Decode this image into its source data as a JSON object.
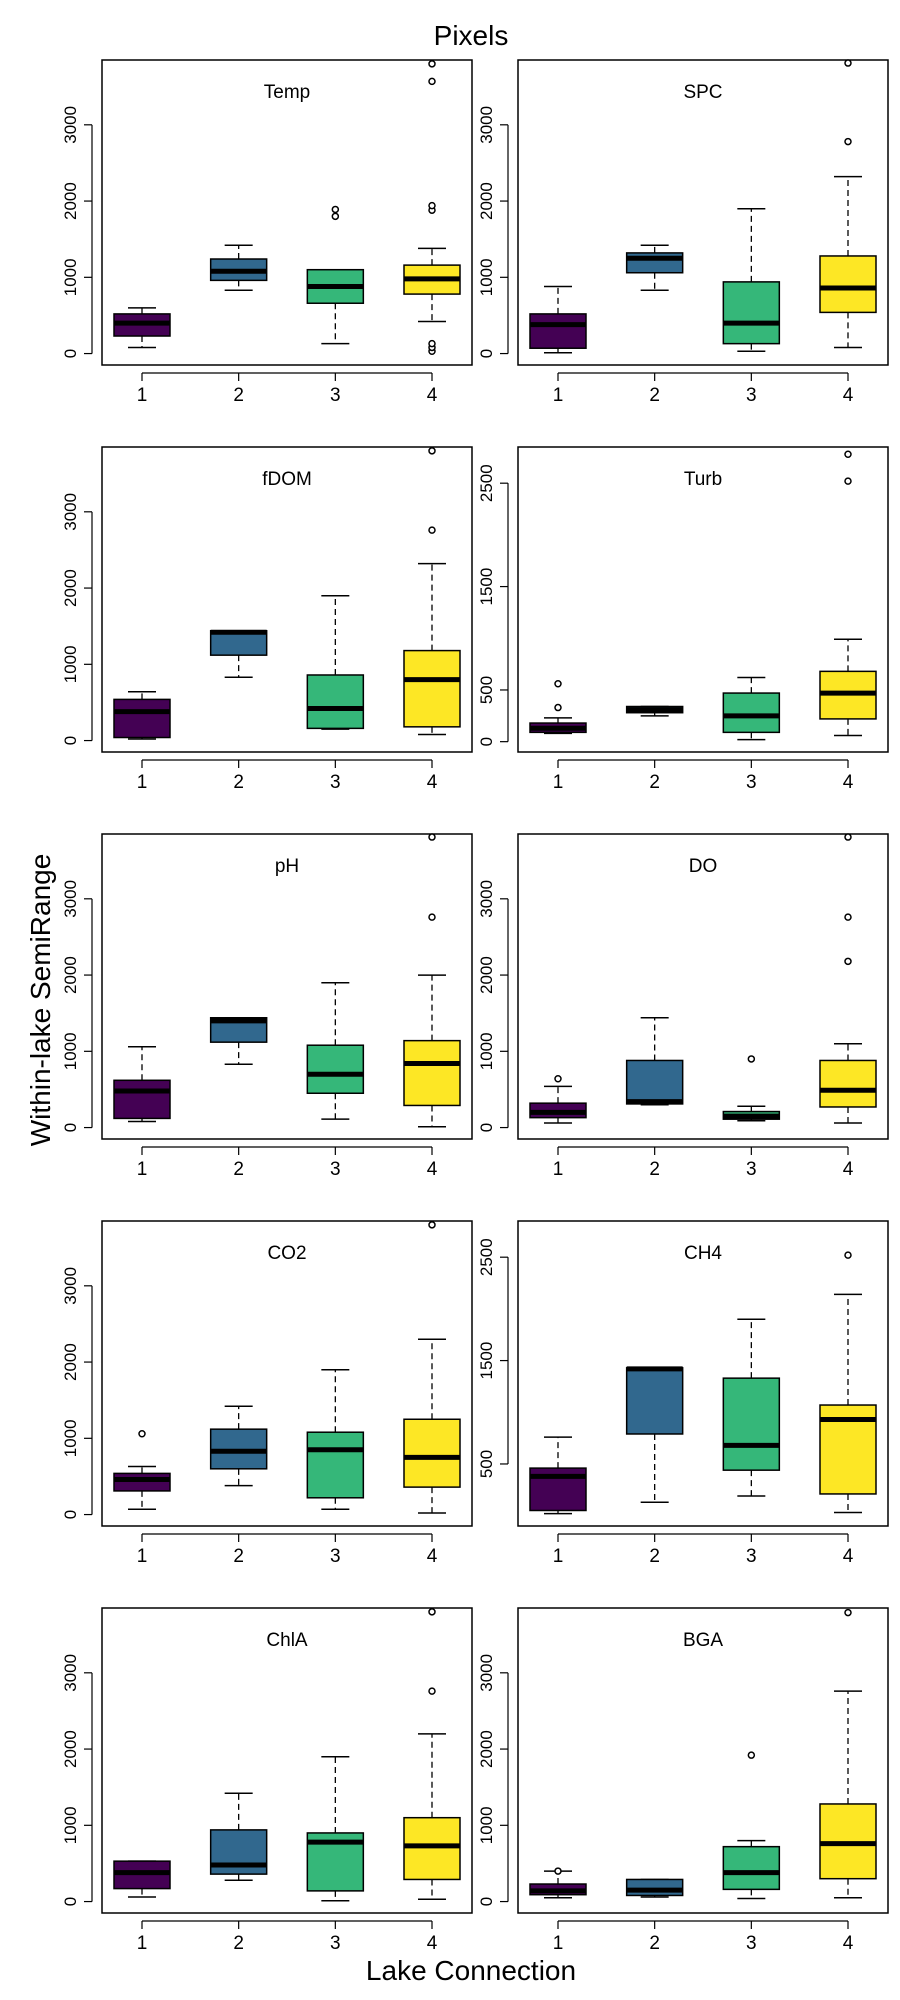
{
  "figure": {
    "title": "Pixels",
    "xlabel": "Lake Connection",
    "ylabel": "Within-lake SemiRange"
  },
  "colors": {
    "1": "#440154",
    "2": "#31688E",
    "3": "#35B779",
    "4": "#FDE725"
  },
  "chart_data": [
    {
      "type": "boxplot",
      "title": "Temp",
      "categories": [
        "1",
        "2",
        "3",
        "4"
      ],
      "ylim": [
        -150,
        3850
      ],
      "yticks": [
        0,
        1000,
        2000,
        3000
      ],
      "boxes": [
        {
          "min": 80,
          "q1": 230,
          "median": 400,
          "q3": 520,
          "max": 600,
          "outliers": []
        },
        {
          "min": 830,
          "q1": 960,
          "median": 1080,
          "q3": 1240,
          "max": 1420,
          "outliers": []
        },
        {
          "min": 130,
          "q1": 660,
          "median": 880,
          "q3": 1100,
          "max": 1100,
          "outliers": [
            1800,
            1890
          ]
        },
        {
          "min": 420,
          "q1": 780,
          "median": 980,
          "q3": 1160,
          "max": 1380,
          "outliers": [
            30,
            80,
            130,
            1880,
            1940,
            3570,
            3800
          ]
        }
      ]
    },
    {
      "type": "boxplot",
      "title": "SPC",
      "categories": [
        "1",
        "2",
        "3",
        "4"
      ],
      "ylim": [
        -150,
        3850
      ],
      "yticks": [
        0,
        1000,
        2000,
        3000
      ],
      "boxes": [
        {
          "min": 10,
          "q1": 70,
          "median": 380,
          "q3": 520,
          "max": 880,
          "outliers": []
        },
        {
          "min": 830,
          "q1": 1060,
          "median": 1250,
          "q3": 1320,
          "max": 1420,
          "outliers": []
        },
        {
          "min": 30,
          "q1": 130,
          "median": 400,
          "q3": 940,
          "max": 1900,
          "outliers": []
        },
        {
          "min": 80,
          "q1": 540,
          "median": 860,
          "q3": 1280,
          "max": 2320,
          "outliers": [
            2780,
            3810
          ]
        }
      ]
    },
    {
      "type": "boxplot",
      "title": "fDOM",
      "categories": [
        "1",
        "2",
        "3",
        "4"
      ],
      "ylim": [
        -150,
        3850
      ],
      "yticks": [
        0,
        1000,
        2000,
        3000
      ],
      "boxes": [
        {
          "min": 20,
          "q1": 40,
          "median": 380,
          "q3": 540,
          "max": 640,
          "outliers": []
        },
        {
          "min": 830,
          "q1": 1120,
          "median": 1420,
          "q3": 1440,
          "max": 1440,
          "outliers": []
        },
        {
          "min": 150,
          "q1": 160,
          "median": 420,
          "q3": 860,
          "max": 1900,
          "outliers": []
        },
        {
          "min": 80,
          "q1": 180,
          "median": 800,
          "q3": 1180,
          "max": 2320,
          "outliers": [
            2760,
            3800
          ]
        }
      ]
    },
    {
      "type": "boxplot",
      "title": "Turb",
      "categories": [
        "1",
        "2",
        "3",
        "4"
      ],
      "ylim": [
        -100,
        2850
      ],
      "yticks": [
        0,
        500,
        1500,
        2500
      ],
      "boxes": [
        {
          "min": 80,
          "q1": 90,
          "median": 130,
          "q3": 180,
          "max": 230,
          "outliers": [
            330,
            560
          ]
        },
        {
          "min": 250,
          "q1": 280,
          "median": 310,
          "q3": 340,
          "max": 340,
          "outliers": []
        },
        {
          "min": 20,
          "q1": 90,
          "median": 250,
          "q3": 470,
          "max": 620,
          "outliers": []
        },
        {
          "min": 60,
          "q1": 220,
          "median": 470,
          "q3": 680,
          "max": 990,
          "outliers": [
            2520,
            2780
          ]
        }
      ]
    },
    {
      "type": "boxplot",
      "title": "pH",
      "categories": [
        "1",
        "2",
        "3",
        "4"
      ],
      "ylim": [
        -150,
        3850
      ],
      "yticks": [
        0,
        1000,
        2000,
        3000
      ],
      "boxes": [
        {
          "min": 80,
          "q1": 120,
          "median": 480,
          "q3": 620,
          "max": 1060,
          "outliers": []
        },
        {
          "min": 830,
          "q1": 1120,
          "median": 1400,
          "q3": 1440,
          "max": 1440,
          "outliers": []
        },
        {
          "min": 110,
          "q1": 450,
          "median": 700,
          "q3": 1080,
          "max": 1900,
          "outliers": []
        },
        {
          "min": 10,
          "q1": 290,
          "median": 840,
          "q3": 1140,
          "max": 2000,
          "outliers": [
            2760,
            3810
          ]
        }
      ]
    },
    {
      "type": "boxplot",
      "title": "DO",
      "categories": [
        "1",
        "2",
        "3",
        "4"
      ],
      "ylim": [
        -150,
        3850
      ],
      "yticks": [
        0,
        1000,
        2000,
        3000
      ],
      "boxes": [
        {
          "min": 60,
          "q1": 130,
          "median": 200,
          "q3": 320,
          "max": 540,
          "outliers": [
            640
          ]
        },
        {
          "min": 300,
          "q1": 310,
          "median": 340,
          "q3": 880,
          "max": 1440,
          "outliers": []
        },
        {
          "min": 90,
          "q1": 110,
          "median": 150,
          "q3": 210,
          "max": 280,
          "outliers": [
            900
          ]
        },
        {
          "min": 60,
          "q1": 270,
          "median": 490,
          "q3": 880,
          "max": 1100,
          "outliers": [
            2180,
            2760,
            3810
          ]
        }
      ]
    },
    {
      "type": "boxplot",
      "title": "CO2",
      "categories": [
        "1",
        "2",
        "3",
        "4"
      ],
      "ylim": [
        -150,
        3850
      ],
      "yticks": [
        0,
        1000,
        2000,
        3000
      ],
      "boxes": [
        {
          "min": 70,
          "q1": 310,
          "median": 460,
          "q3": 540,
          "max": 630,
          "outliers": [
            1060
          ]
        },
        {
          "min": 380,
          "q1": 600,
          "median": 830,
          "q3": 1120,
          "max": 1420,
          "outliers": []
        },
        {
          "min": 70,
          "q1": 220,
          "median": 850,
          "q3": 1080,
          "max": 1900,
          "outliers": []
        },
        {
          "min": 20,
          "q1": 360,
          "median": 750,
          "q3": 1250,
          "max": 2300,
          "outliers": [
            3800
          ]
        }
      ]
    },
    {
      "type": "boxplot",
      "title": "CH4",
      "categories": [
        "1",
        "2",
        "3",
        "4"
      ],
      "ylim": [
        -100,
        2850
      ],
      "yticks": [
        500,
        1500,
        2500
      ],
      "boxes": [
        {
          "min": 20,
          "q1": 50,
          "median": 380,
          "q3": 460,
          "max": 760,
          "outliers": []
        },
        {
          "min": 130,
          "q1": 790,
          "median": 1420,
          "q3": 1430,
          "max": 1430,
          "outliers": []
        },
        {
          "min": 190,
          "q1": 440,
          "median": 680,
          "q3": 1330,
          "max": 1900,
          "outliers": []
        },
        {
          "min": 30,
          "q1": 210,
          "median": 930,
          "q3": 1070,
          "max": 2140,
          "outliers": [
            2520
          ]
        }
      ]
    },
    {
      "type": "boxplot",
      "title": "ChlA",
      "categories": [
        "1",
        "2",
        "3",
        "4"
      ],
      "ylim": [
        -150,
        3850
      ],
      "yticks": [
        0,
        1000,
        2000,
        3000
      ],
      "boxes": [
        {
          "min": 60,
          "q1": 170,
          "median": 380,
          "q3": 530,
          "max": 530,
          "outliers": []
        },
        {
          "min": 280,
          "q1": 360,
          "median": 480,
          "q3": 940,
          "max": 1420,
          "outliers": []
        },
        {
          "min": 10,
          "q1": 140,
          "median": 780,
          "q3": 900,
          "max": 1900,
          "outliers": []
        },
        {
          "min": 30,
          "q1": 290,
          "median": 730,
          "q3": 1100,
          "max": 2200,
          "outliers": [
            2760,
            3800
          ]
        }
      ]
    },
    {
      "type": "boxplot",
      "title": "BGA",
      "categories": [
        "1",
        "2",
        "3",
        "4"
      ],
      "ylim": [
        -150,
        3850
      ],
      "yticks": [
        0,
        1000,
        2000,
        3000
      ],
      "boxes": [
        {
          "min": 50,
          "q1": 90,
          "median": 140,
          "q3": 230,
          "max": 400,
          "outliers": [
            400
          ]
        },
        {
          "min": 60,
          "q1": 80,
          "median": 150,
          "q3": 290,
          "max": 290,
          "outliers": []
        },
        {
          "min": 40,
          "q1": 160,
          "median": 380,
          "q3": 720,
          "max": 800,
          "outliers": [
            1920
          ]
        },
        {
          "min": 50,
          "q1": 300,
          "median": 760,
          "q3": 1280,
          "max": 2760,
          "outliers": [
            3790
          ]
        }
      ]
    }
  ]
}
